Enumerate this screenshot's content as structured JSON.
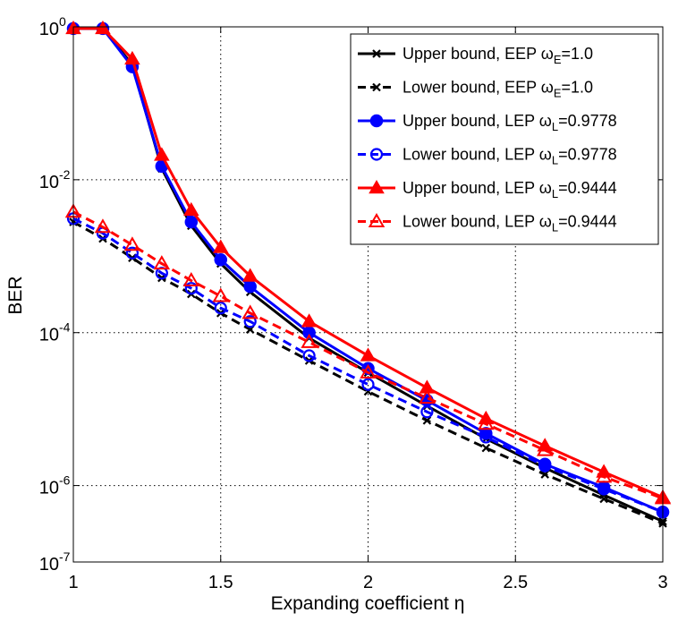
{
  "chart_data": {
    "type": "line",
    "xlabel": "Expanding coefficient η",
    "ylabel": "BER",
    "y_scale": "log",
    "xlim": [
      1,
      3
    ],
    "ylim": [
      1e-07,
      1
    ],
    "grid": true,
    "legend_position": "top-right",
    "xticks": [
      {
        "value": 1,
        "label": "1"
      },
      {
        "value": 1.5,
        "label": "1.5"
      },
      {
        "value": 2,
        "label": "2"
      },
      {
        "value": 2.5,
        "label": "2.5"
      },
      {
        "value": 3,
        "label": "3"
      }
    ],
    "yticks": [
      {
        "value": 1,
        "base": "10",
        "exp": "0"
      },
      {
        "value": 0.01,
        "base": "10",
        "exp": "-2"
      },
      {
        "value": 0.0001,
        "base": "10",
        "exp": "-4"
      },
      {
        "value": 1e-06,
        "base": "10",
        "exp": "-6"
      },
      {
        "value": 1e-07,
        "base": "10",
        "exp": "-7"
      }
    ],
    "series": [
      {
        "name": "Upper bound, EEP ωE=1.0",
        "legend_prefix": "Upper bound, EEP ω",
        "legend_sub": "E",
        "legend_suffix": "=1.0",
        "color": "#000000",
        "dashed": false,
        "marker": "x",
        "x": [
          1,
          1.1,
          1.2,
          1.3,
          1.4,
          1.5,
          1.6,
          1.8,
          2.0,
          2.2,
          2.4,
          2.6,
          2.8,
          3.0
        ],
        "y": [
          0.95,
          0.95,
          0.32,
          0.014,
          0.0025,
          0.0008,
          0.00034,
          8.5e-05,
          3e-05,
          1.1e-05,
          4.1e-06,
          1.7e-06,
          7.5e-07,
          3.4e-07
        ]
      },
      {
        "name": "Lower bound, EEP ωE=1.0",
        "legend_prefix": "Lower bound, EEP ω",
        "legend_sub": "E",
        "legend_suffix": "=1.0",
        "color": "#000000",
        "dashed": true,
        "marker": "x",
        "x": [
          1,
          1.1,
          1.2,
          1.3,
          1.4,
          1.5,
          1.6,
          1.8,
          2.0,
          2.2,
          2.4,
          2.6,
          2.8,
          3.0
        ],
        "y": [
          0.0028,
          0.0017,
          0.00095,
          0.00052,
          0.00032,
          0.00018,
          0.00011,
          4.3e-05,
          1.7e-05,
          7.1e-06,
          3.1e-06,
          1.4e-06,
          6.7e-07,
          3.2e-07
        ]
      },
      {
        "name": "Upper bound, LEP ωL=0.9778",
        "legend_prefix": "Upper bound, LEP ω",
        "legend_sub": "L",
        "legend_suffix": "=0.9778",
        "color": "#0000ff",
        "dashed": false,
        "marker": "circle",
        "x": [
          1,
          1.1,
          1.2,
          1.3,
          1.4,
          1.5,
          1.6,
          1.8,
          2.0,
          2.2,
          2.4,
          2.6,
          2.8,
          3.0
        ],
        "y": [
          0.95,
          0.95,
          0.3,
          0.015,
          0.0028,
          0.0009,
          0.0004,
          0.0001,
          3.4e-05,
          1.3e-05,
          4.8e-06,
          1.9e-06,
          9.5e-07,
          4.5e-07
        ]
      },
      {
        "name": "Lower bound, LEP ωL=0.9778",
        "legend_prefix": "Lower bound, LEP ω",
        "legend_sub": "L",
        "legend_suffix": "=0.9778",
        "color": "#0000ff",
        "dashed": true,
        "marker": "circle-open",
        "x": [
          1,
          1.1,
          1.2,
          1.3,
          1.4,
          1.5,
          1.6,
          1.8,
          2.0,
          2.2,
          2.4,
          2.6,
          2.8,
          3.0
        ],
        "y": [
          0.0031,
          0.002,
          0.0011,
          0.0006,
          0.00038,
          0.00021,
          0.00014,
          5e-05,
          2.1e-05,
          9.2e-06,
          4.3e-06,
          1.8e-06,
          9e-07,
          4.5e-07
        ]
      },
      {
        "name": "Upper bound, LEP ωL=0.9444",
        "legend_prefix": "Upper bound, LEP ω",
        "legend_sub": "L",
        "legend_suffix": "=0.9444",
        "color": "#ff0000",
        "dashed": false,
        "marker": "triangle",
        "x": [
          1,
          1.1,
          1.2,
          1.3,
          1.4,
          1.5,
          1.6,
          1.8,
          2.0,
          2.2,
          2.4,
          2.6,
          2.8,
          3.0
        ],
        "y": [
          0.95,
          0.95,
          0.38,
          0.021,
          0.004,
          0.0013,
          0.00055,
          0.00014,
          5e-05,
          1.9e-05,
          7.5e-06,
          3.3e-06,
          1.5e-06,
          7e-07
        ]
      },
      {
        "name": "Lower bound, LEP ωL=0.9444",
        "legend_prefix": "Lower bound, LEP ω",
        "legend_sub": "L",
        "legend_suffix": "=0.9444",
        "color": "#ff0000",
        "dashed": true,
        "marker": "triangle-open",
        "x": [
          1,
          1.1,
          1.2,
          1.3,
          1.4,
          1.5,
          1.6,
          1.8,
          2.0,
          2.2,
          2.4,
          2.6,
          2.8,
          3.0
        ],
        "y": [
          0.0038,
          0.0024,
          0.0014,
          0.0008,
          0.00048,
          0.0003,
          0.00018,
          7.5e-05,
          3e-05,
          1.4e-05,
          6.4e-06,
          2.9e-06,
          1.3e-06,
          6.8e-07
        ]
      }
    ]
  }
}
